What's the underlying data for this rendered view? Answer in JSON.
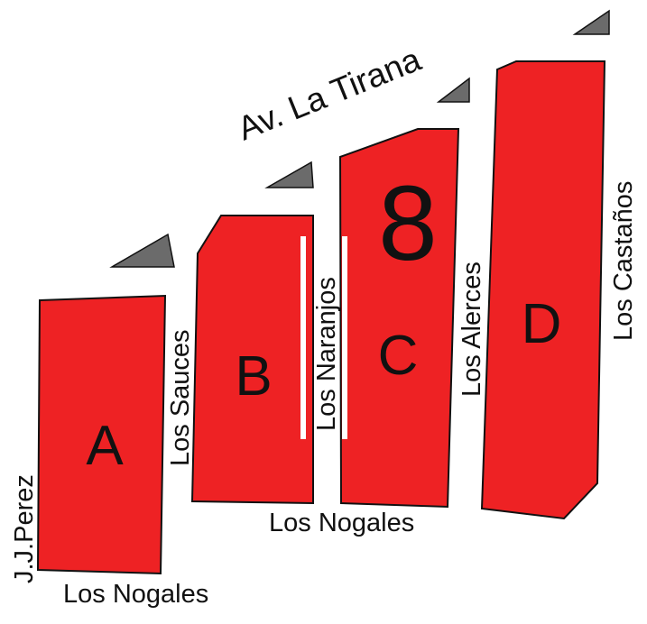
{
  "colors": {
    "lot_fill": "#EE2224",
    "wedge_fill": "#6B6B6B",
    "outline": "#111111",
    "text": "#111111",
    "background": "#FFFFFF"
  },
  "map_title_number": "8",
  "lots": [
    {
      "id": "A",
      "label": "A"
    },
    {
      "id": "B",
      "label": "B"
    },
    {
      "id": "C",
      "label": "C"
    },
    {
      "id": "D",
      "label": "D"
    }
  ],
  "streets": {
    "main_avenue": "Av. La Tirana",
    "los_nogales_bottom": "Los Nogales",
    "los_nogales_mid": "Los Nogales",
    "jj_perez": "J.J.Perez",
    "los_sauces": "Los Sauces",
    "los_naranjos": "Los Naranjos",
    "los_alerces": "Los Alerces",
    "los_castanos": "Los Castaños"
  }
}
